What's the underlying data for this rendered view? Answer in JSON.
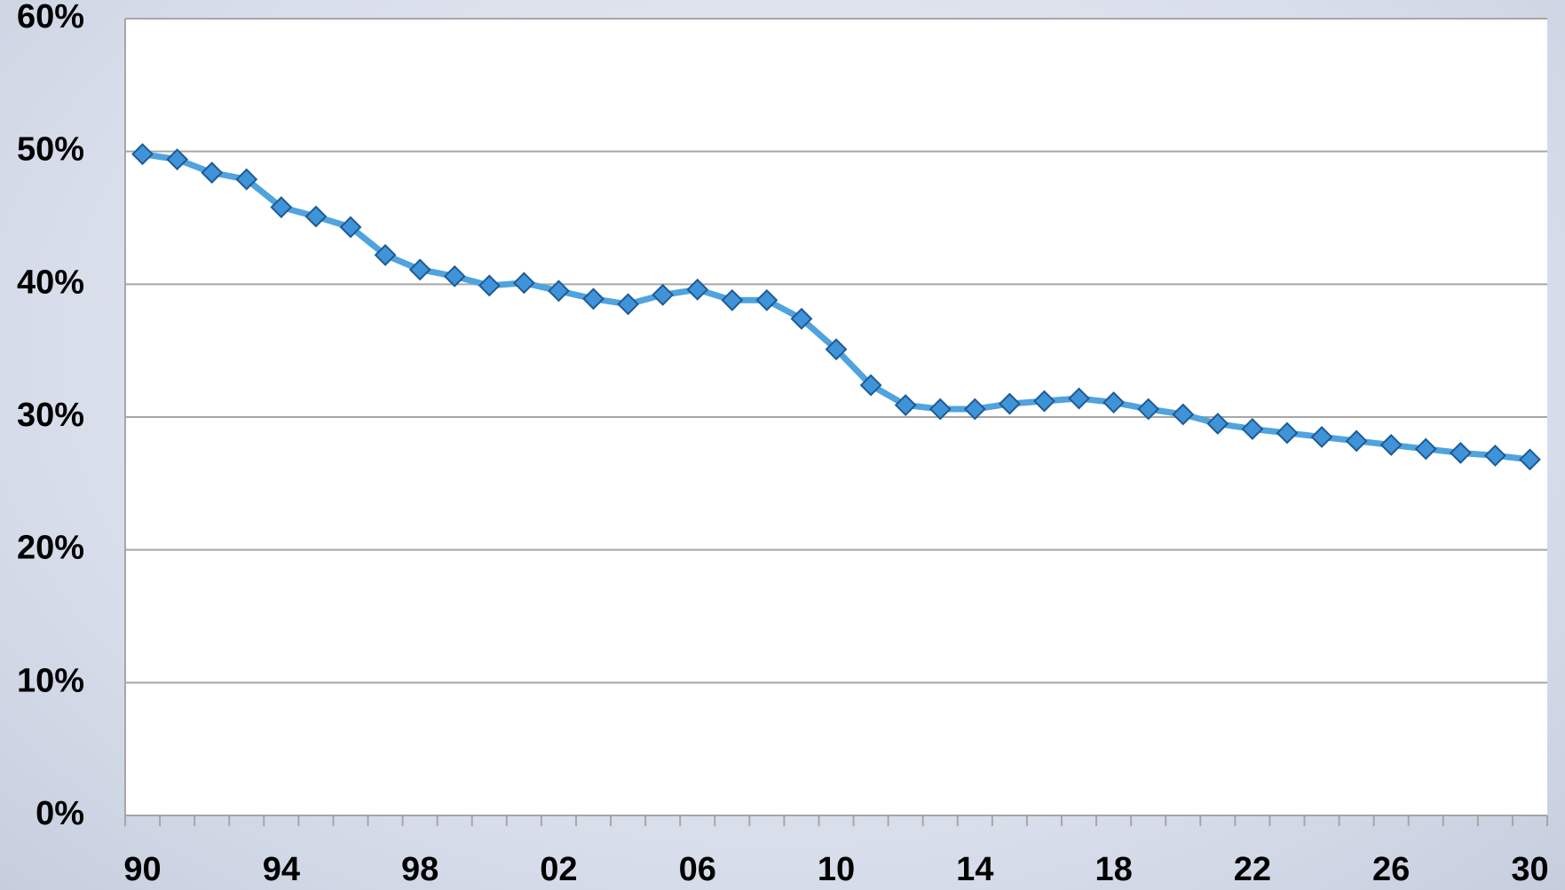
{
  "chart_data": {
    "type": "line",
    "categories": [
      "90",
      null,
      null,
      null,
      "94",
      null,
      null,
      null,
      "98",
      null,
      null,
      null,
      "02",
      null,
      null,
      null,
      "06",
      null,
      null,
      null,
      "10",
      null,
      null,
      null,
      "14",
      null,
      null,
      null,
      "18",
      null,
      null,
      null,
      "22",
      null,
      null,
      null,
      "26",
      null,
      null,
      null,
      "30"
    ],
    "series": [
      {
        "color": "#4fa3de",
        "values": [
          49.8,
          49.4,
          48.4,
          47.9,
          45.8,
          45.1,
          44.3,
          42.2,
          41.1,
          40.6,
          39.9,
          40.1,
          39.5,
          38.9,
          38.5,
          39.2,
          39.6,
          38.8,
          38.8,
          37.4,
          35.1,
          32.4,
          30.9,
          30.6,
          30.6,
          31.0,
          31.2,
          31.4,
          31.1,
          30.6,
          30.2,
          29.5,
          29.1,
          28.8,
          28.5,
          28.2,
          27.9,
          27.6,
          27.3,
          27.1,
          26.8
        ]
      }
    ],
    "ylim": [
      0,
      60
    ],
    "yticks": [
      {
        "value": 0,
        "label": "0%"
      },
      {
        "value": 10,
        "label": "10%"
      },
      {
        "value": 20,
        "label": "20%"
      },
      {
        "value": 30,
        "label": "30%"
      },
      {
        "value": 40,
        "label": "40%"
      },
      {
        "value": 50,
        "label": "50%"
      },
      {
        "value": 60,
        "label": "60%"
      }
    ],
    "grid": true
  }
}
